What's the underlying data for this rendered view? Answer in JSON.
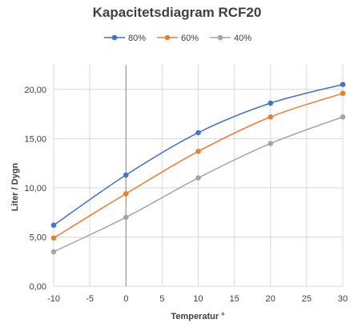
{
  "chart_data": {
    "type": "line",
    "title": "Kapacitetsdiagram RCF20",
    "xlabel": "Temperatur °",
    "ylabel": "Liter / Dygn",
    "x": [
      -10,
      0,
      10,
      20,
      30
    ],
    "xlim": [
      -10,
      30
    ],
    "ylim": [
      0,
      22.5
    ],
    "x_ticks": [
      "-10",
      "-5",
      "0",
      "5",
      "10",
      "15",
      "20",
      "25",
      "30"
    ],
    "y_ticks": [
      "0,00",
      "5,00",
      "10,00",
      "15,00",
      "20,00"
    ],
    "grid": true,
    "legend": "top",
    "series": [
      {
        "name": "80%",
        "color": "#4472C4",
        "values": [
          6.2,
          11.3,
          15.6,
          18.6,
          20.5
        ]
      },
      {
        "name": "60%",
        "color": "#ED7D31",
        "values": [
          4.9,
          9.4,
          13.7,
          17.2,
          19.6
        ]
      },
      {
        "name": "40%",
        "color": "#A5A5A5",
        "values": [
          3.5,
          7.0,
          11.0,
          14.5,
          17.2
        ]
      }
    ]
  }
}
